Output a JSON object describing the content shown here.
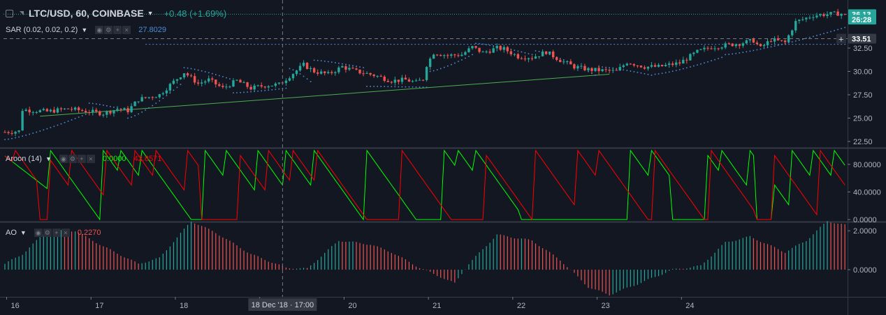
{
  "header": {
    "symbol_title": "LTC/USD, 60, COINBASE",
    "change_text": "+0.48 (+1.69%)",
    "change_color": "#26a69a"
  },
  "crosshair": {
    "time_label": "18 Dec '18 · 17:00"
  },
  "chart_data": [
    {
      "type": "candlestick",
      "name": "price-pane",
      "indicator_label": "SAR (0.02, 0.02, 0.2)",
      "indicator_value": "27.8029",
      "y_ticks": [
        "22.50",
        "25.00",
        "27.50",
        "30.00",
        "32.50"
      ],
      "ylim": [
        21.9,
        37.2
      ],
      "price_labels": [
        {
          "text": "36.13",
          "value": 36.13,
          "style": "last",
          "color": "#26a69a"
        },
        {
          "text": "26:28",
          "value": 35.55,
          "style": "countdown",
          "color": "#26a69a"
        },
        {
          "text": "33.51",
          "value": 33.51,
          "style": "crosshair",
          "color": "#363a45"
        }
      ],
      "trendline": {
        "color": "#4caf50",
        "points": [
          [
            10.0,
            25.2
          ],
          [
            172.0,
            29.7
          ]
        ]
      },
      "candle_keyframes": [
        [
          0,
          23.5
        ],
        [
          4,
          23.6
        ],
        [
          5,
          25.9
        ],
        [
          12,
          25.7
        ],
        [
          18,
          26.0
        ],
        [
          22,
          25.8
        ],
        [
          28,
          25.5
        ],
        [
          32,
          26.0
        ],
        [
          35,
          25.8
        ],
        [
          38,
          27.0
        ],
        [
          44,
          27.5
        ],
        [
          48,
          28.9
        ],
        [
          51,
          29.9
        ],
        [
          55,
          28.7
        ],
        [
          58,
          29.1
        ],
        [
          62,
          28.2
        ],
        [
          66,
          29.0
        ],
        [
          70,
          28.2
        ],
        [
          74,
          28.5
        ],
        [
          78,
          28.6
        ],
        [
          82,
          29.8
        ],
        [
          85,
          30.7
        ],
        [
          88,
          30.0
        ],
        [
          92,
          29.7
        ],
        [
          96,
          30.5
        ],
        [
          100,
          30.0
        ],
        [
          105,
          29.6
        ],
        [
          110,
          29.0
        ],
        [
          114,
          29.1
        ],
        [
          117,
          28.8
        ],
        [
          119,
          29.2
        ],
        [
          120,
          30.7
        ],
        [
          122,
          32.0
        ],
        [
          126,
          31.7
        ],
        [
          130,
          31.8
        ],
        [
          133,
          32.6
        ],
        [
          136,
          32.0
        ],
        [
          140,
          32.5
        ],
        [
          142,
          32.4
        ],
        [
          146,
          31.6
        ],
        [
          150,
          31.5
        ],
        [
          154,
          32.1
        ],
        [
          158,
          31.2
        ],
        [
          162,
          30.5
        ],
        [
          166,
          30.2
        ],
        [
          170,
          30.1
        ],
        [
          174,
          30.0
        ],
        [
          177,
          31.0
        ],
        [
          182,
          30.5
        ],
        [
          186,
          30.5
        ],
        [
          192,
          30.9
        ],
        [
          197,
          32.1
        ],
        [
          201,
          32.6
        ],
        [
          205,
          32.8
        ],
        [
          209,
          33.0
        ],
        [
          213,
          33.3
        ],
        [
          215,
          32.5
        ],
        [
          218,
          33.4
        ],
        [
          222,
          33.1
        ],
        [
          225,
          35.3
        ],
        [
          230,
          36.0
        ],
        [
          233,
          36.1
        ],
        [
          237,
          36.2
        ],
        [
          239,
          36.13
        ]
      ],
      "sar_segments": [
        {
          "from": 0,
          "to": 23,
          "start": 22.7,
          "end": 25.4
        },
        {
          "from": 24,
          "to": 34,
          "start": 26.6,
          "end": 25.9
        },
        {
          "from": 35,
          "to": 50,
          "start": 25.0,
          "end": 28.6
        },
        {
          "from": 51,
          "to": 64,
          "start": 30.4,
          "end": 29.2
        },
        {
          "from": 65,
          "to": 80,
          "start": 27.7,
          "end": 28.2
        },
        {
          "from": 81,
          "to": 87,
          "start": 30.3,
          "end": 28.9
        },
        {
          "from": 88,
          "to": 102,
          "start": 31.2,
          "end": 30.4
        },
        {
          "from": 103,
          "to": 120,
          "start": 28.4,
          "end": 28.3
        },
        {
          "from": 121,
          "to": 133,
          "start": 30.0,
          "end": 31.8
        },
        {
          "from": 134,
          "to": 150,
          "start": 33.0,
          "end": 31.8
        },
        {
          "from": 151,
          "to": 168,
          "start": 32.2,
          "end": 29.6
        },
        {
          "from": 169,
          "to": 184,
          "start": 30.5,
          "end": 29.6
        },
        {
          "from": 185,
          "to": 204,
          "start": 29.7,
          "end": 31.5
        },
        {
          "from": 205,
          "to": 239,
          "start": 31.8,
          "end": 34.7
        }
      ]
    },
    {
      "type": "line",
      "name": "aroon-pane",
      "indicator_label": "Aroon (14)",
      "values": [
        "0.0000",
        "42.8571"
      ],
      "value_colors": [
        "#00ff00",
        "#ff0000"
      ],
      "y_ticks": [
        "0.0000",
        "40.0000",
        "80.0000"
      ],
      "ylim": [
        -2,
        102
      ],
      "series": [
        {
          "color": "#00ff00",
          "reset_bars": [
            13,
            28,
            33,
            39,
            57,
            63,
            72,
            80,
            88,
            103,
            125,
            129,
            134,
            161,
            178,
            184,
            199,
            204,
            212,
            224,
            230,
            236
          ],
          "floor_spans": [
            [
              147,
              176
            ],
            [
              190,
              199
            ],
            [
              214,
              218
            ]
          ]
        },
        {
          "color": "#ff0000",
          "reset_bars": [
            3,
            11,
            19,
            29,
            37,
            43,
            52,
            66,
            75,
            82,
            89,
            113,
            136,
            151,
            163,
            169,
            185,
            201,
            218,
            232
          ],
          "floor_spans": [
            [
              10,
              12
            ],
            [
              56,
              66
            ],
            [
              129,
              136
            ],
            [
              214,
              218
            ]
          ]
        }
      ]
    },
    {
      "type": "bar",
      "name": "ao-pane",
      "indicator_label": "AO",
      "value": "0.2270",
      "value_color": "#ef5350",
      "y_ticks": [
        "0.0000",
        "2.0000"
      ],
      "ylim": [
        -1.4,
        2.4
      ],
      "keyframes": [
        [
          0,
          0.3
        ],
        [
          5,
          0.8
        ],
        [
          12,
          2.0
        ],
        [
          20,
          2.0
        ],
        [
          28,
          1.2
        ],
        [
          38,
          0.3
        ],
        [
          44,
          0.6
        ],
        [
          53,
          2.5
        ],
        [
          60,
          1.9
        ],
        [
          70,
          0.8
        ],
        [
          80,
          0.1
        ],
        [
          86,
          0.05
        ],
        [
          95,
          1.5
        ],
        [
          104,
          1.3
        ],
        [
          110,
          0.9
        ],
        [
          118,
          0.1
        ],
        [
          128,
          -0.7
        ],
        [
          132,
          0.3
        ],
        [
          140,
          1.8
        ],
        [
          150,
          1.5
        ],
        [
          158,
          0.5
        ],
        [
          166,
          -0.9
        ],
        [
          172,
          -1.3
        ],
        [
          182,
          -0.6
        ],
        [
          190,
          0.0
        ],
        [
          198,
          0.2
        ],
        [
          205,
          1.4
        ],
        [
          212,
          1.7
        ],
        [
          222,
          0.9
        ],
        [
          228,
          1.5
        ],
        [
          234,
          2.5
        ],
        [
          239,
          2.3
        ]
      ]
    }
  ],
  "x_axis": {
    "ticks": [
      {
        "label": "16",
        "bar": 0.5
      },
      {
        "label": "17",
        "bar": 24.5
      },
      {
        "label": "18",
        "bar": 48.5
      },
      {
        "label": "19",
        "bar": 72.5
      },
      {
        "label": "20",
        "bar": 96.5
      },
      {
        "label": "21",
        "bar": 120.5
      },
      {
        "label": "22",
        "bar": 144.5
      },
      {
        "label": "23",
        "bar": 168.5
      },
      {
        "label": "24",
        "bar": 192.5
      }
    ]
  },
  "colors": {
    "up": "#26a69a",
    "down": "#ef5350",
    "sar": "#4f8cd9",
    "grid": "#2a2e39",
    "axis_text": "#b2b5be",
    "background": "#131722"
  }
}
